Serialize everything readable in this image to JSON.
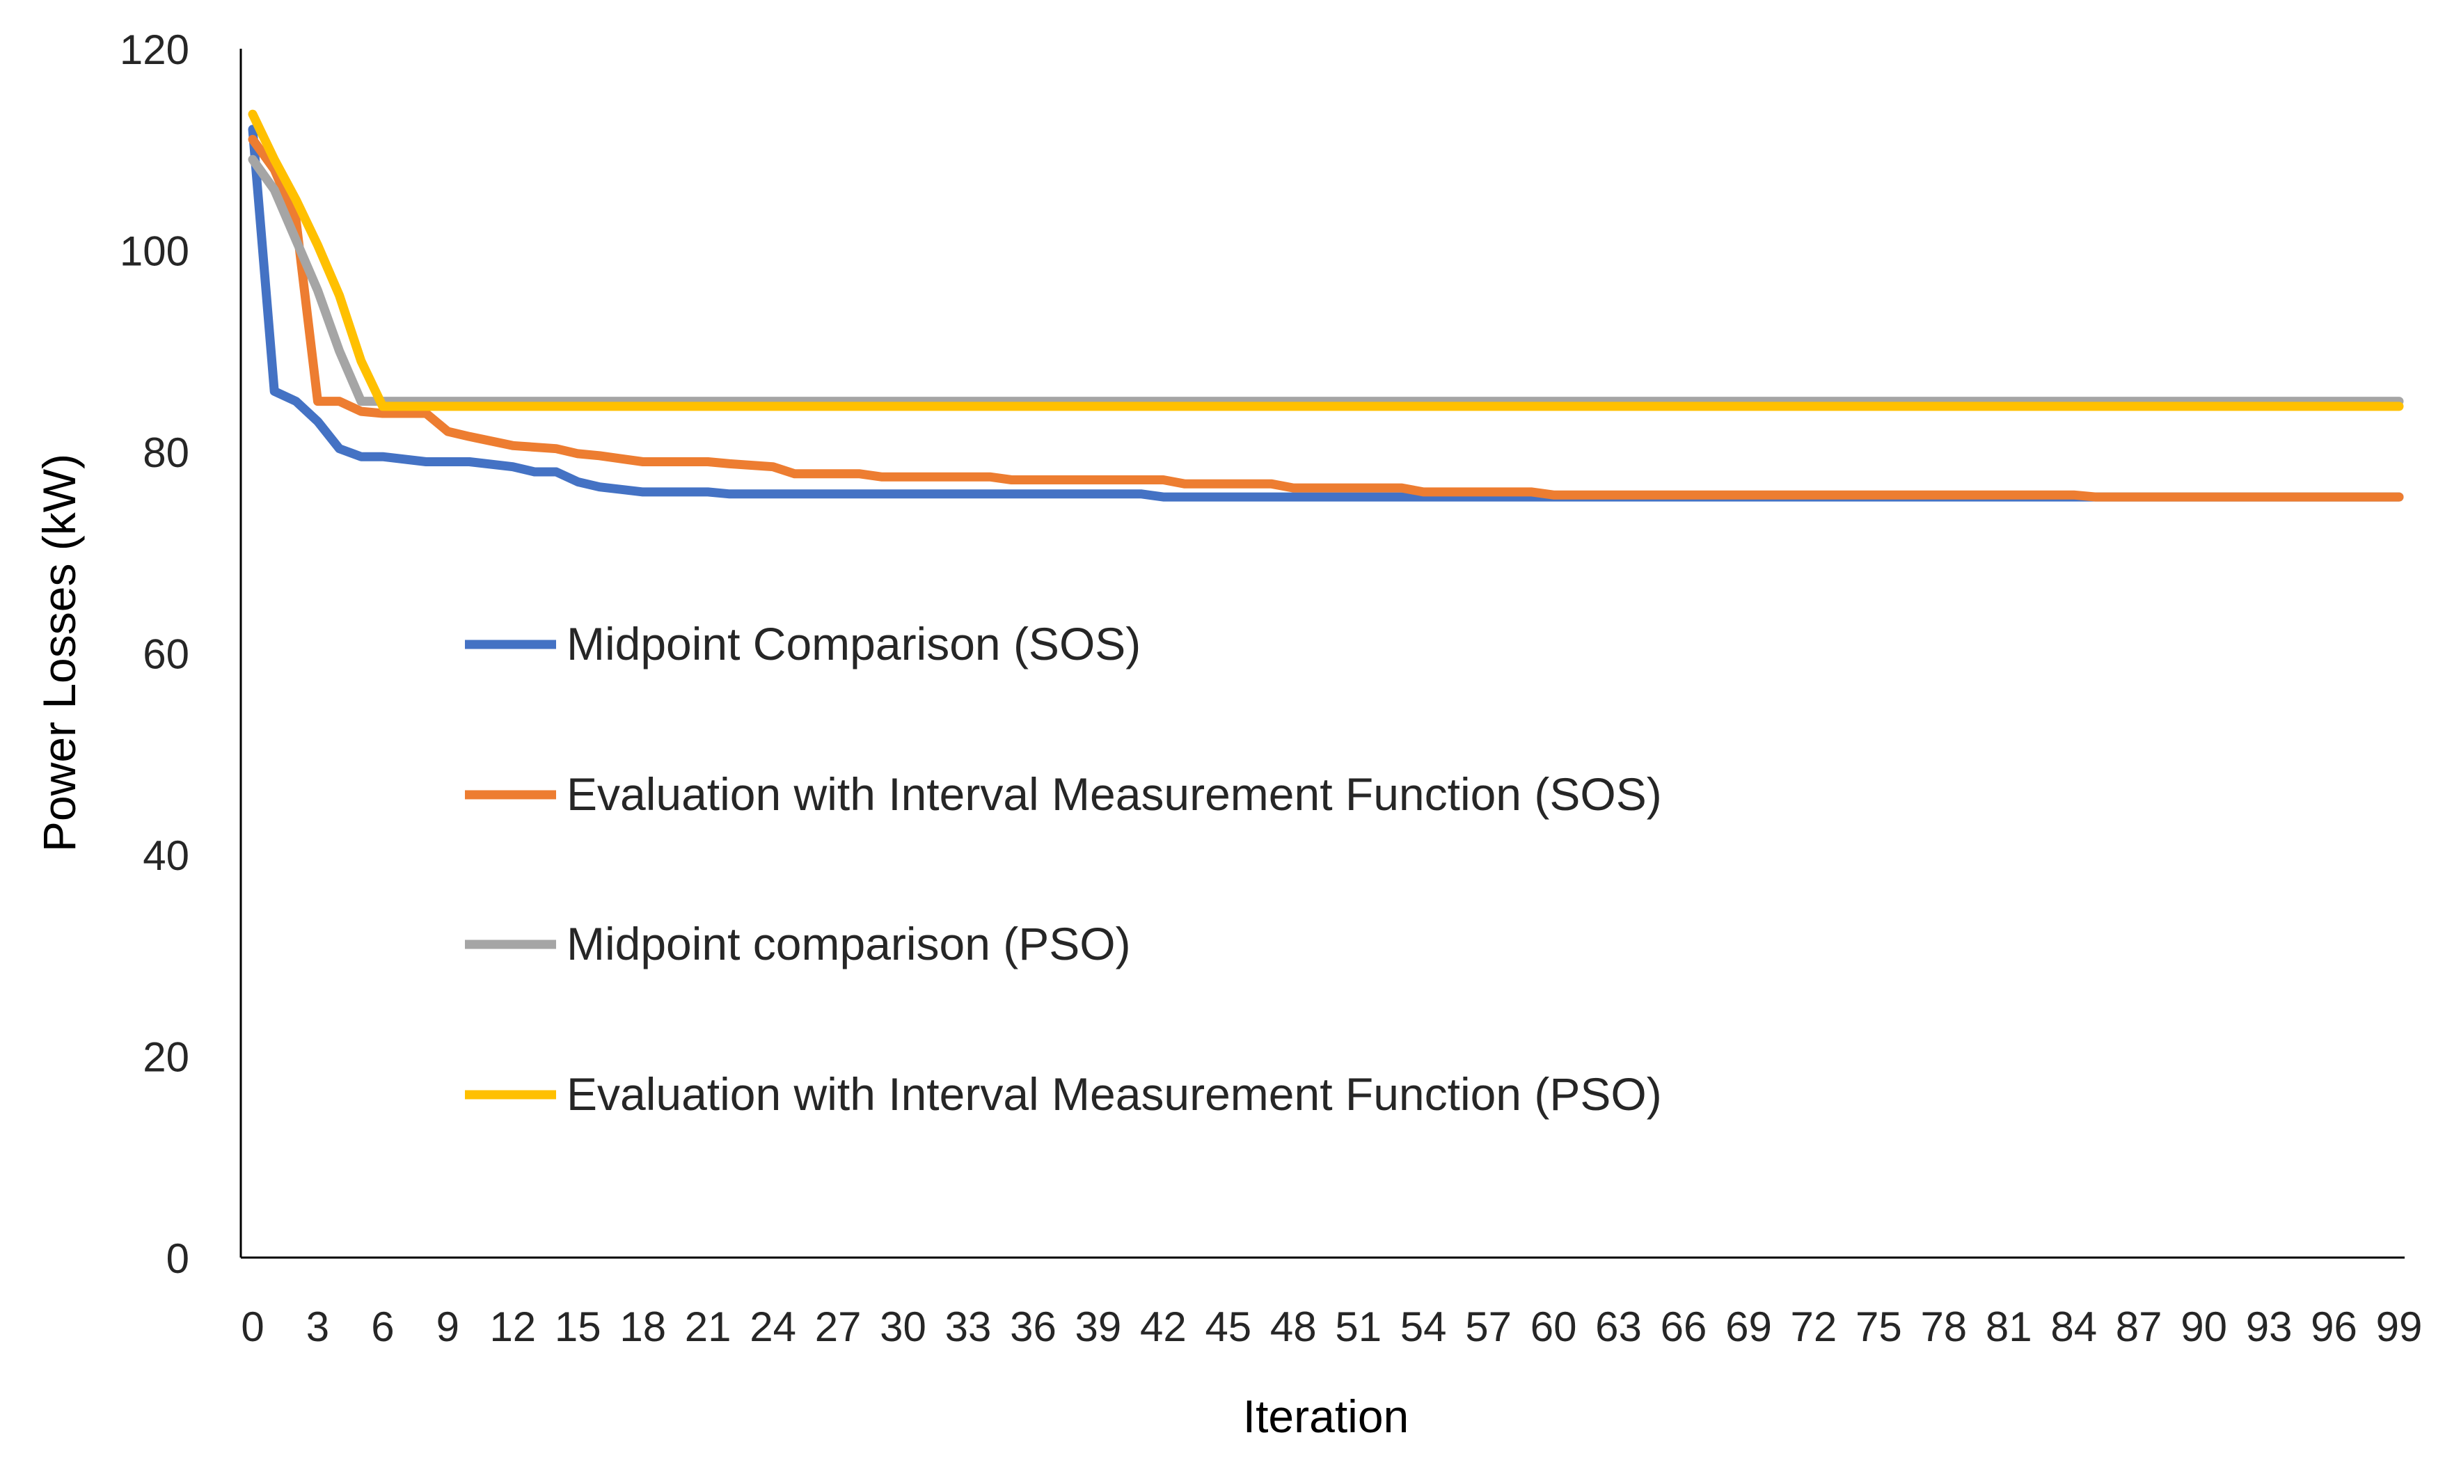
{
  "chart_data": {
    "type": "line",
    "title": "",
    "xlabel": "Iteration",
    "ylabel": "Power Losses (kW)",
    "xlim": [
      0,
      99
    ],
    "ylim": [
      0,
      120
    ],
    "x_ticks": [
      0,
      3,
      6,
      9,
      12,
      15,
      18,
      21,
      24,
      27,
      30,
      33,
      36,
      39,
      42,
      45,
      48,
      51,
      54,
      57,
      60,
      63,
      66,
      69,
      72,
      75,
      78,
      81,
      84,
      87,
      90,
      93,
      96,
      99
    ],
    "y_ticks": [
      0,
      20,
      40,
      60,
      80,
      100,
      120
    ],
    "grid": false,
    "legend": "inside-left",
    "series": [
      {
        "name": "Midpoint Comparison (SOS)",
        "color": "#4472C4",
        "points": [
          [
            0,
            112
          ],
          [
            1,
            86
          ],
          [
            2,
            85
          ],
          [
            3,
            83
          ],
          [
            4,
            80.3
          ],
          [
            5,
            79.5
          ],
          [
            6,
            79.5
          ],
          [
            8,
            79
          ],
          [
            10,
            79
          ],
          [
            12,
            78.5
          ],
          [
            13,
            78
          ],
          [
            14,
            78
          ],
          [
            15,
            77
          ],
          [
            16,
            76.5
          ],
          [
            18,
            76
          ],
          [
            21,
            76
          ],
          [
            22,
            75.8
          ],
          [
            41,
            75.8
          ],
          [
            42,
            75.5
          ],
          [
            99,
            75.5
          ]
        ]
      },
      {
        "name": "Evaluation with Interval Measurement Function (SOS)",
        "color": "#ED7D31",
        "points": [
          [
            0,
            111
          ],
          [
            1,
            108
          ],
          [
            2,
            103
          ],
          [
            3,
            85
          ],
          [
            4,
            85
          ],
          [
            5,
            84
          ],
          [
            6,
            83.8
          ],
          [
            8,
            83.8
          ],
          [
            9,
            82
          ],
          [
            10,
            81.5
          ],
          [
            12,
            80.6
          ],
          [
            14,
            80.3
          ],
          [
            15,
            79.8
          ],
          [
            16,
            79.6
          ],
          [
            18,
            79
          ],
          [
            21,
            79
          ],
          [
            22,
            78.8
          ],
          [
            24,
            78.5
          ],
          [
            25,
            77.8
          ],
          [
            28,
            77.8
          ],
          [
            29,
            77.5
          ],
          [
            34,
            77.5
          ],
          [
            35,
            77.2
          ],
          [
            42,
            77.2
          ],
          [
            43,
            76.8
          ],
          [
            47,
            76.8
          ],
          [
            48,
            76.4
          ],
          [
            53,
            76.4
          ],
          [
            54,
            76
          ],
          [
            59,
            76
          ],
          [
            60,
            75.7
          ],
          [
            84,
            75.7
          ],
          [
            85,
            75.5
          ],
          [
            99,
            75.5
          ]
        ]
      },
      {
        "name": "Midpoint comparison (PSO)",
        "color": "#A5A5A5",
        "points": [
          [
            0,
            109
          ],
          [
            1,
            106
          ],
          [
            2,
            101
          ],
          [
            3,
            96
          ],
          [
            4,
            90
          ],
          [
            5,
            85
          ],
          [
            99,
            85
          ]
        ]
      },
      {
        "name": "Evaluation with Interval Measurement Function (PSO)",
        "color": "#FFC000",
        "points": [
          [
            0,
            113.5
          ],
          [
            1,
            109
          ],
          [
            2,
            105
          ],
          [
            3,
            100.5
          ],
          [
            4,
            95.5
          ],
          [
            5,
            89
          ],
          [
            6,
            84.5
          ],
          [
            99,
            84.5
          ]
        ]
      }
    ]
  }
}
